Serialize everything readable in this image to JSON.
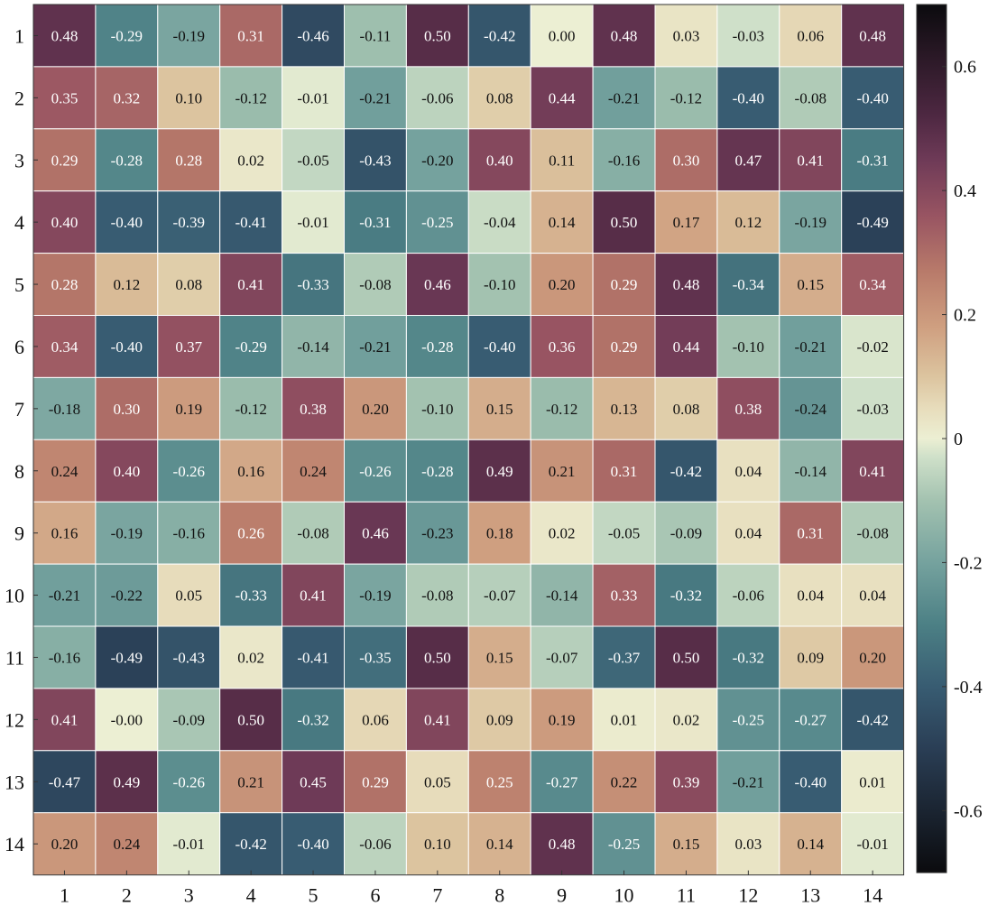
{
  "chart_data": {
    "type": "heatmap",
    "title": "",
    "xlabel": "",
    "ylabel": "",
    "x_labels": [
      "1",
      "2",
      "3",
      "4",
      "5",
      "6",
      "7",
      "8",
      "9",
      "10",
      "11",
      "12",
      "13",
      "14"
    ],
    "y_labels": [
      "1",
      "2",
      "3",
      "4",
      "5",
      "6",
      "7",
      "8",
      "9",
      "10",
      "11",
      "12",
      "13",
      "14"
    ],
    "cell_labels": [
      [
        "0.48",
        "-0.29",
        "-0.19",
        "0.31",
        "-0.46",
        "-0.11",
        "0.50",
        "-0.42",
        "0.00",
        "0.48",
        "0.03",
        "-0.03",
        "0.06",
        "0.48"
      ],
      [
        "0.35",
        "0.32",
        "0.10",
        "-0.12",
        "-0.01",
        "-0.21",
        "-0.06",
        "0.08",
        "0.44",
        "-0.21",
        "-0.12",
        "-0.40",
        "-0.08",
        "-0.40"
      ],
      [
        "0.29",
        "-0.28",
        "0.28",
        "0.02",
        "-0.05",
        "-0.43",
        "-0.20",
        "0.40",
        "0.11",
        "-0.16",
        "0.30",
        "0.47",
        "0.41",
        "-0.31"
      ],
      [
        "0.40",
        "-0.40",
        "-0.39",
        "-0.41",
        "-0.01",
        "-0.31",
        "-0.25",
        "-0.04",
        "0.14",
        "0.50",
        "0.17",
        "0.12",
        "-0.19",
        "-0.49"
      ],
      [
        "0.28",
        "0.12",
        "0.08",
        "0.41",
        "-0.33",
        "-0.08",
        "0.46",
        "-0.10",
        "0.20",
        "0.29",
        "0.48",
        "-0.34",
        "0.15",
        "0.34"
      ],
      [
        "0.34",
        "-0.40",
        "0.37",
        "-0.29",
        "-0.14",
        "-0.21",
        "-0.28",
        "-0.40",
        "0.36",
        "0.29",
        "0.44",
        "-0.10",
        "-0.21",
        "-0.02"
      ],
      [
        "-0.18",
        "0.30",
        "0.19",
        "-0.12",
        "0.38",
        "0.20",
        "-0.10",
        "0.15",
        "-0.12",
        "0.13",
        "0.08",
        "0.38",
        "-0.24",
        "-0.03"
      ],
      [
        "0.24",
        "0.40",
        "-0.26",
        "0.16",
        "0.24",
        "-0.26",
        "-0.28",
        "0.49",
        "0.21",
        "0.31",
        "-0.42",
        "0.04",
        "-0.14",
        "0.41"
      ],
      [
        "0.16",
        "-0.19",
        "-0.16",
        "0.26",
        "-0.08",
        "0.46",
        "-0.23",
        "0.18",
        "0.02",
        "-0.05",
        "-0.09",
        "0.04",
        "0.31",
        "-0.08"
      ],
      [
        "-0.21",
        "-0.22",
        "0.05",
        "-0.33",
        "0.41",
        "-0.19",
        "-0.08",
        "-0.07",
        "-0.14",
        "0.33",
        "-0.32",
        "-0.06",
        "0.04",
        "0.04"
      ],
      [
        "-0.16",
        "-0.49",
        "-0.43",
        "0.02",
        "-0.41",
        "-0.35",
        "0.50",
        "0.15",
        "-0.07",
        "-0.37",
        "0.50",
        "-0.32",
        "0.09",
        "0.20"
      ],
      [
        "0.41",
        "-0.00",
        "-0.09",
        "0.50",
        "-0.32",
        "0.06",
        "0.41",
        "0.09",
        "0.19",
        "0.01",
        "0.02",
        "-0.25",
        "-0.27",
        "-0.42"
      ],
      [
        "-0.47",
        "0.49",
        "-0.26",
        "0.21",
        "0.45",
        "0.29",
        "0.05",
        "0.25",
        "-0.27",
        "0.22",
        "0.39",
        "-0.21",
        "-0.40",
        "0.01"
      ],
      [
        "0.20",
        "0.24",
        "-0.01",
        "-0.42",
        "-0.40",
        "-0.06",
        "0.10",
        "0.14",
        "0.48",
        "-0.25",
        "0.15",
        "0.03",
        "0.14",
        "-0.01"
      ]
    ],
    "value_range": [
      -0.7,
      0.7
    ],
    "colorbar": {
      "ticks": [
        -0.6,
        -0.4,
        -0.2,
        0,
        0.2,
        0.4,
        0.6
      ],
      "tick_labels": [
        "-0.6",
        "-0.4",
        "-0.2",
        "0",
        "0.2",
        "0.4",
        "0.6"
      ]
    },
    "colormap_stops": [
      {
        "v": -0.7,
        "color": "#0b0b0e"
      },
      {
        "v": -0.5,
        "color": "#2a3e55"
      },
      {
        "v": -0.4,
        "color": "#385c72"
      },
      {
        "v": -0.3,
        "color": "#4c8085"
      },
      {
        "v": -0.2,
        "color": "#75a29e"
      },
      {
        "v": -0.1,
        "color": "#a3c2b0"
      },
      {
        "v": -0.03,
        "color": "#cfe0c9"
      },
      {
        "v": 0.0,
        "color": "#ecefd3"
      },
      {
        "v": 0.05,
        "color": "#e7dcbb"
      },
      {
        "v": 0.1,
        "color": "#dcc49f"
      },
      {
        "v": 0.18,
        "color": "#cf9f80"
      },
      {
        "v": 0.27,
        "color": "#b87a6a"
      },
      {
        "v": 0.36,
        "color": "#985462"
      },
      {
        "v": 0.45,
        "color": "#6e3a57"
      },
      {
        "v": 0.52,
        "color": "#4e2842"
      },
      {
        "v": 0.7,
        "color": "#0b0b0e"
      }
    ],
    "grid": true,
    "legend": "colorbar-right"
  }
}
